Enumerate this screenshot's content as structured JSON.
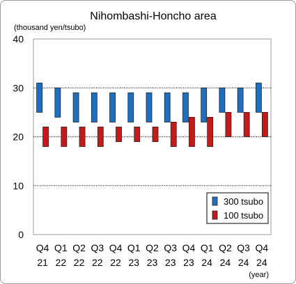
{
  "chart_data": {
    "type": "floating-bar",
    "title": "Nihombashi-Honcho area",
    "ylabel": "(thousand yen/tsubo)",
    "xlabel": "(year)",
    "ylim": [
      0,
      40
    ],
    "yticks": [
      0,
      10,
      20,
      30,
      40
    ],
    "grid": true,
    "legend_position": "bottom-right",
    "categories": [
      {
        "q": "Q4",
        "y": "21"
      },
      {
        "q": "Q1",
        "y": "22"
      },
      {
        "q": "Q2",
        "y": "22"
      },
      {
        "q": "Q3",
        "y": "22"
      },
      {
        "q": "Q4",
        "y": "22"
      },
      {
        "q": "Q1",
        "y": "23"
      },
      {
        "q": "Q2",
        "y": "23"
      },
      {
        "q": "Q3",
        "y": "23"
      },
      {
        "q": "Q4",
        "y": "23"
      },
      {
        "q": "Q1",
        "y": "24"
      },
      {
        "q": "Q2",
        "y": "24"
      },
      {
        "q": "Q3",
        "y": "24"
      },
      {
        "q": "Q4",
        "y": "24"
      }
    ],
    "series": [
      {
        "name": "300 tsubo",
        "color": "#1f6fc0",
        "ranges": [
          [
            25,
            31
          ],
          [
            24,
            30
          ],
          [
            23,
            29
          ],
          [
            23,
            29
          ],
          [
            23,
            29
          ],
          [
            23,
            29
          ],
          [
            23,
            29
          ],
          [
            23,
            29
          ],
          [
            23,
            29
          ],
          [
            23,
            30
          ],
          [
            25,
            30
          ],
          [
            25,
            30
          ],
          [
            25,
            31
          ]
        ]
      },
      {
        "name": "100 tsubo",
        "color": "#c41a1a",
        "ranges": [
          [
            18,
            22
          ],
          [
            18,
            22
          ],
          [
            18,
            22
          ],
          [
            18,
            22
          ],
          [
            19,
            22
          ],
          [
            19,
            22
          ],
          [
            19,
            22
          ],
          [
            18,
            23
          ],
          [
            18,
            24
          ],
          [
            18,
            24
          ],
          [
            20,
            25
          ],
          [
            20,
            25
          ],
          [
            20,
            25
          ]
        ]
      }
    ]
  }
}
